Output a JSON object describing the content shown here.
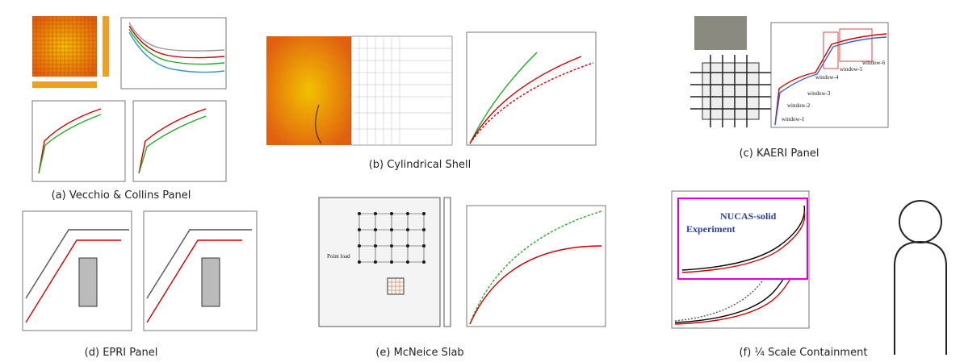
{
  "panels": [
    {
      "caption": "(a) Vecchio & Collins Panel"
    },
    {
      "caption": "(b) Cylindrical Shell"
    },
    {
      "caption": "(c) KAERI Panel",
      "labels": [
        "window-1",
        "window-2",
        "window-3",
        "window-4",
        "window-5",
        "window-6"
      ]
    },
    {
      "caption": "(d) EPRI Panel"
    },
    {
      "caption": "(e) McNeice Slab",
      "labels": [
        "Point load"
      ]
    },
    {
      "caption": "(f) ¼ Scale Containment",
      "labels": [
        "NUCAS-solid",
        "Experiment"
      ]
    }
  ]
}
